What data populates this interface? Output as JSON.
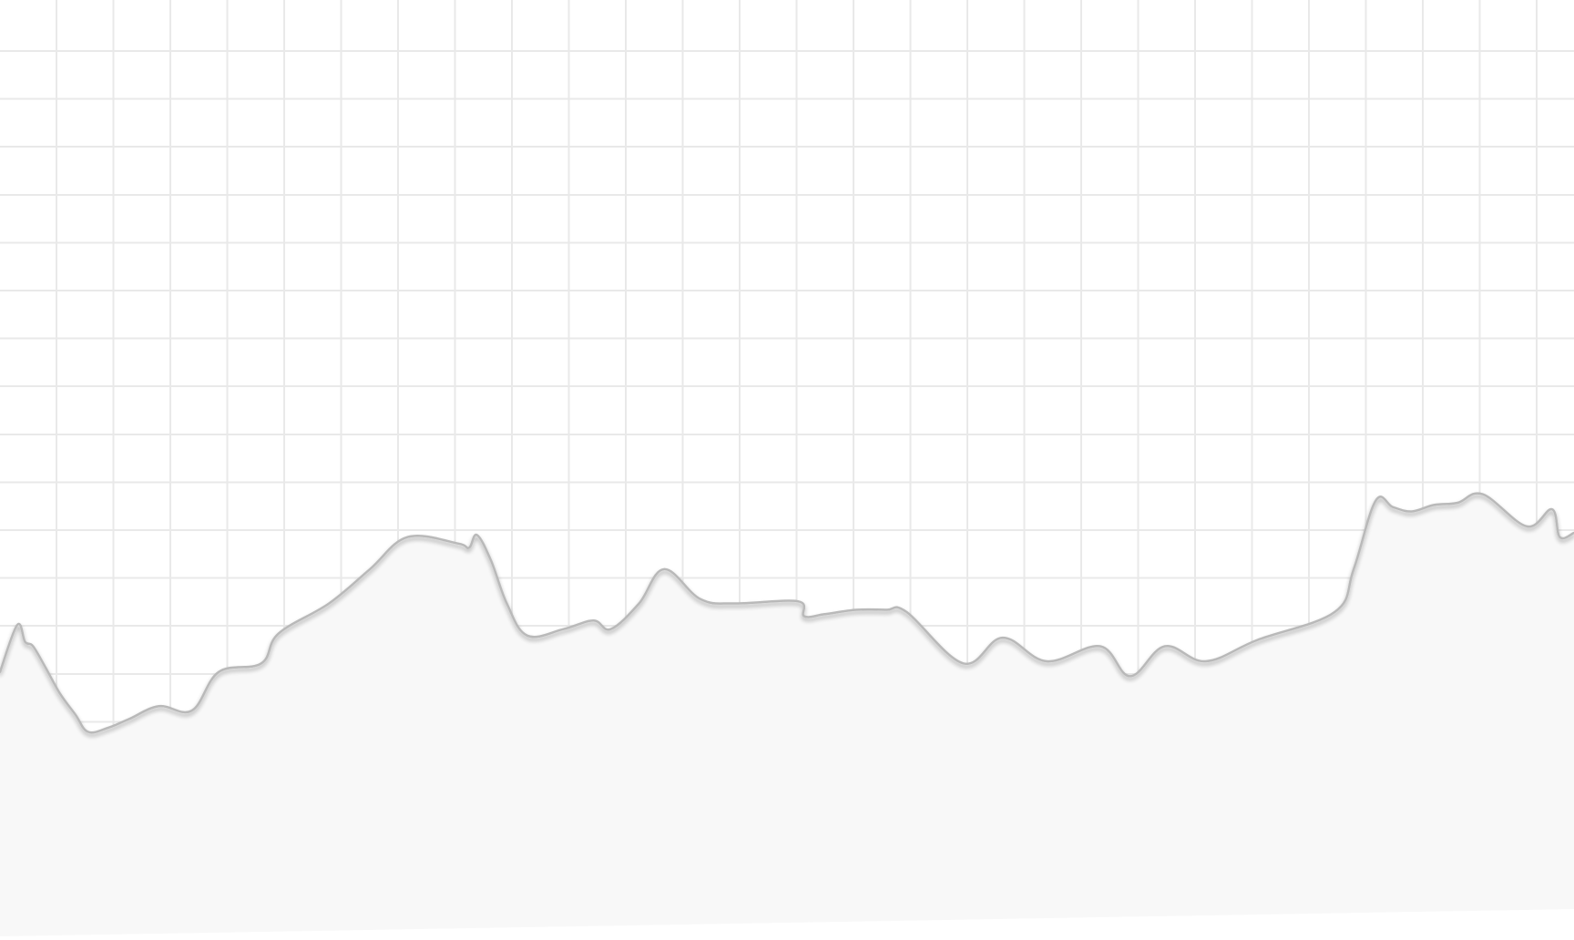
{
  "colors": {
    "background": "#ffffff",
    "grid": "#e9e9e9",
    "line": "#b9b9b9",
    "area_fill": "#f8f8f8",
    "shadow": "#000000"
  },
  "chart_data": {
    "type": "area",
    "title": "",
    "xlabel": "",
    "ylabel": "",
    "grid": true,
    "legend": "none",
    "xlim": [
      0,
      100
    ],
    "ylim": [
      0,
      100
    ],
    "x": [
      0,
      1.1,
      1.6,
      2.1,
      2.9,
      3.8,
      4.8,
      5.6,
      6.9,
      8.2,
      10.1,
      12.2,
      13.9,
      16.6,
      17.7,
      20.9,
      23.5,
      25.9,
      29.1,
      29.8,
      30.3,
      31.2,
      32.2,
      33.5,
      35.8,
      37.7,
      38.8,
      40.6,
      42.2,
      44.5,
      46.7,
      50.7,
      51.1,
      52.4,
      54.4,
      56.3,
      57.6,
      61.2,
      63.7,
      66.5,
      69.9,
      71.8,
      74.0,
      76.6,
      79.9,
      84.8,
      86.0,
      87.4,
      88.5,
      89.7,
      91.1,
      92.6,
      94.2,
      97.0,
      98.6,
      99.1,
      100
    ],
    "y": [
      9.8,
      12.0,
      11.2,
      11.0,
      10.0,
      8.8,
      7.8,
      7.0,
      7.2,
      7.6,
      8.2,
      8.0,
      9.8,
      10.2,
      11.6,
      13.0,
      14.6,
      16.1,
      15.8,
      15.6,
      16.2,
      15.0,
      13.0,
      11.5,
      11.8,
      12.2,
      11.8,
      13.0,
      14.6,
      13.2,
      13.0,
      13.1,
      12.4,
      12.5,
      12.7,
      12.7,
      12.6,
      10.2,
      11.4,
      10.3,
      11.0,
      9.6,
      11.0,
      10.3,
      11.3,
      12.6,
      14.6,
      17.8,
      17.5,
      17.3,
      17.6,
      17.7,
      18.1,
      16.6,
      17.4,
      16.1,
      16.3
    ]
  }
}
